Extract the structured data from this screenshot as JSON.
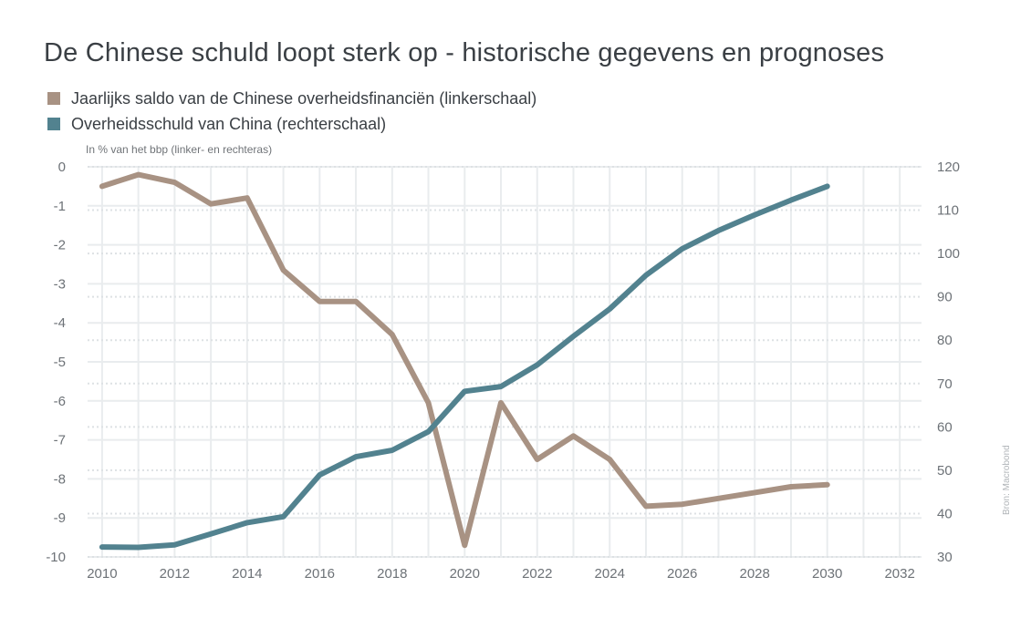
{
  "title": "De Chinese schuld loopt sterk op - historische gegevens en prognoses",
  "units_note": "In % van het bbp (linker- en rechteras)",
  "source_note": "Bron: Macrobond",
  "colors": {
    "left_series": "#a89283",
    "right_series": "#52828f",
    "grid": "#e9ecee"
  },
  "chart_data": {
    "type": "line",
    "title": "De Chinese schuld loopt sterk op - historische gegevens en prognoses",
    "ylabel": "In % van het bbp (linker- en rechteras)",
    "x_ticks": [
      "2010",
      "2012",
      "2014",
      "2016",
      "2018",
      "2020",
      "2022",
      "2024",
      "2026",
      "2028",
      "2030",
      "2032"
    ],
    "xlim": [
      2009.6,
      2032.6
    ],
    "y_left": {
      "lim": [
        -10,
        0
      ],
      "ticks": [
        "0",
        "-1",
        "-2",
        "-3",
        "-4",
        "-5",
        "-6",
        "-7",
        "-8",
        "-9",
        "-10"
      ]
    },
    "y_right": {
      "lim": [
        30,
        120
      ],
      "ticks": [
        "120",
        "110",
        "100",
        "90",
        "80",
        "70",
        "60",
        "50",
        "40",
        "30"
      ]
    },
    "grid": true,
    "legend_placement": "top-left",
    "series": [
      {
        "name": "Jaarlijks saldo van de Chinese overheidsfinanciën (linkerschaal)",
        "axis": "left",
        "color": "#a89283",
        "x": [
          2010,
          2011,
          2012,
          2013,
          2014,
          2015,
          2016,
          2017,
          2018,
          2019,
          2020,
          2021,
          2022,
          2023,
          2024,
          2025,
          2026,
          2027,
          2028,
          2029,
          2030
        ],
        "values": [
          -0.5,
          -0.2,
          -0.4,
          -0.95,
          -0.8,
          -2.65,
          -3.45,
          -3.45,
          -4.3,
          -6.05,
          -9.7,
          -6.05,
          -7.5,
          -6.9,
          -7.5,
          -8.7,
          -8.65,
          -8.5,
          -8.35,
          -8.2,
          -8.15
        ]
      },
      {
        "name": "Overheidsschuld van China (rechterschaal)",
        "axis": "right",
        "color": "#52828f",
        "x": [
          2010,
          2011,
          2012,
          2013,
          2014,
          2015,
          2016,
          2017,
          2018,
          2019,
          2020,
          2021,
          2022,
          2023,
          2024,
          2025,
          2026,
          2027,
          2028,
          2029,
          2030
        ],
        "values": [
          32.3,
          32.2,
          32.8,
          35.3,
          37.9,
          39.3,
          48.9,
          53.1,
          54.6,
          58.9,
          68.2,
          69.3,
          74.3,
          80.9,
          87.2,
          95.0,
          101.1,
          105.3,
          108.9,
          112.3,
          115.5
        ]
      }
    ]
  }
}
